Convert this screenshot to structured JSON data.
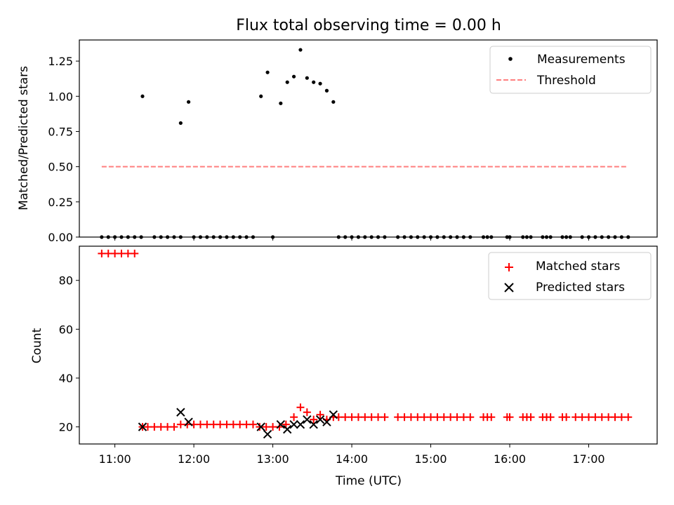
{
  "chart_data": [
    {
      "type": "scatter",
      "title": "Flux total observing time = 0.00 h",
      "xlabel": "",
      "ylabel": "Matched/Predicted stars",
      "xlim": [
        "10:33",
        "17:52"
      ],
      "ylim": [
        0,
        1.4
      ],
      "yticks": [
        "0.00",
        "0.25",
        "0.50",
        "0.75",
        "1.00",
        "1.25"
      ],
      "legend_position": "upper-right",
      "series": [
        {
          "name": "Measurements",
          "marker": "dot",
          "color": "#000000",
          "points": [
            [
              "10:50",
              0
            ],
            [
              "10:55",
              0
            ],
            [
              "11:00",
              0
            ],
            [
              "11:05",
              0
            ],
            [
              "11:10",
              0
            ],
            [
              "11:15",
              0
            ],
            [
              "11:20",
              0
            ],
            [
              "11:21",
              1.0
            ],
            [
              "11:30",
              0
            ],
            [
              "11:35",
              0
            ],
            [
              "11:40",
              0
            ],
            [
              "11:45",
              0
            ],
            [
              "11:50",
              0
            ],
            [
              "11:50",
              0.81
            ],
            [
              "11:56",
              0.96
            ],
            [
              "12:00",
              0
            ],
            [
              "12:05",
              0
            ],
            [
              "12:10",
              0
            ],
            [
              "12:15",
              0
            ],
            [
              "12:20",
              0
            ],
            [
              "12:25",
              0
            ],
            [
              "12:30",
              0
            ],
            [
              "12:35",
              0
            ],
            [
              "12:40",
              0
            ],
            [
              "12:45",
              0
            ],
            [
              "12:51",
              1.0
            ],
            [
              "12:56",
              1.17
            ],
            [
              "13:00",
              0
            ],
            [
              "13:06",
              0.95
            ],
            [
              "13:11",
              1.1
            ],
            [
              "13:16",
              1.14
            ],
            [
              "13:21",
              1.33
            ],
            [
              "13:26",
              1.13
            ],
            [
              "13:31",
              1.1
            ],
            [
              "13:36",
              1.09
            ],
            [
              "13:41",
              1.04
            ],
            [
              "13:46",
              0.96
            ],
            [
              "13:50",
              0
            ],
            [
              "13:55",
              0
            ],
            [
              "14:00",
              0
            ],
            [
              "14:05",
              0
            ],
            [
              "14:10",
              0
            ],
            [
              "14:15",
              0
            ],
            [
              "14:20",
              0
            ],
            [
              "14:25",
              0
            ],
            [
              "14:35",
              0
            ],
            [
              "14:40",
              0
            ],
            [
              "14:45",
              0
            ],
            [
              "14:50",
              0
            ],
            [
              "14:55",
              0
            ],
            [
              "15:00",
              0
            ],
            [
              "15:05",
              0
            ],
            [
              "15:10",
              0
            ],
            [
              "15:15",
              0
            ],
            [
              "15:20",
              0
            ],
            [
              "15:25",
              0
            ],
            [
              "15:30",
              0
            ],
            [
              "15:40",
              0
            ],
            [
              "15:43",
              0
            ],
            [
              "15:46",
              0
            ],
            [
              "15:58",
              0
            ],
            [
              "16:00",
              0
            ],
            [
              "16:10",
              0
            ],
            [
              "16:13",
              0
            ],
            [
              "16:16",
              0
            ],
            [
              "16:25",
              0
            ],
            [
              "16:28",
              0
            ],
            [
              "16:31",
              0
            ],
            [
              "16:40",
              0
            ],
            [
              "16:43",
              0
            ],
            [
              "16:46",
              0
            ],
            [
              "16:55",
              0
            ],
            [
              "17:00",
              0
            ],
            [
              "17:05",
              0
            ],
            [
              "17:10",
              0
            ],
            [
              "17:15",
              0
            ],
            [
              "17:20",
              0
            ],
            [
              "17:25",
              0
            ],
            [
              "17:30",
              0
            ]
          ]
        },
        {
          "name": "Threshold",
          "marker": "dashed-line",
          "color": "#ff7f7f",
          "points": [
            [
              "10:50",
              0.5
            ],
            [
              "17:30",
              0.5
            ]
          ]
        }
      ]
    },
    {
      "type": "scatter",
      "title": "",
      "xlabel": "Time (UTC)",
      "ylabel": "Count",
      "xlim": [
        "10:33",
        "17:52"
      ],
      "ylim": [
        13,
        94
      ],
      "yticks": [
        "20",
        "40",
        "60",
        "80"
      ],
      "xticks": [
        "11:00",
        "12:00",
        "13:00",
        "14:00",
        "15:00",
        "16:00",
        "17:00"
      ],
      "legend_position": "upper-right",
      "series": [
        {
          "name": "Matched stars",
          "marker": "plus",
          "color": "#ff0000",
          "points": [
            [
              "10:50",
              91
            ],
            [
              "10:55",
              91
            ],
            [
              "11:00",
              91
            ],
            [
              "11:05",
              91
            ],
            [
              "11:10",
              91
            ],
            [
              "11:15",
              91
            ],
            [
              "11:21",
              20
            ],
            [
              "11:25",
              20
            ],
            [
              "11:30",
              20
            ],
            [
              "11:35",
              20
            ],
            [
              "11:40",
              20
            ],
            [
              "11:45",
              20
            ],
            [
              "11:50",
              21
            ],
            [
              "11:55",
              21
            ],
            [
              "12:00",
              21
            ],
            [
              "12:05",
              21
            ],
            [
              "12:10",
              21
            ],
            [
              "12:15",
              21
            ],
            [
              "12:20",
              21
            ],
            [
              "12:25",
              21
            ],
            [
              "12:30",
              21
            ],
            [
              "12:35",
              21
            ],
            [
              "12:40",
              21
            ],
            [
              "12:45",
              21
            ],
            [
              "12:50",
              20
            ],
            [
              "12:55",
              20
            ],
            [
              "13:00",
              20
            ],
            [
              "13:05",
              20
            ],
            [
              "13:10",
              21
            ],
            [
              "13:16",
              24
            ],
            [
              "13:21",
              28
            ],
            [
              "13:26",
              26
            ],
            [
              "13:31",
              23
            ],
            [
              "13:36",
              25
            ],
            [
              "13:41",
              23
            ],
            [
              "13:46",
              24
            ],
            [
              "13:50",
              24
            ],
            [
              "13:55",
              24
            ],
            [
              "14:00",
              24
            ],
            [
              "14:05",
              24
            ],
            [
              "14:10",
              24
            ],
            [
              "14:15",
              24
            ],
            [
              "14:20",
              24
            ],
            [
              "14:25",
              24
            ],
            [
              "14:35",
              24
            ],
            [
              "14:40",
              24
            ],
            [
              "14:45",
              24
            ],
            [
              "14:50",
              24
            ],
            [
              "14:55",
              24
            ],
            [
              "15:00",
              24
            ],
            [
              "15:05",
              24
            ],
            [
              "15:10",
              24
            ],
            [
              "15:15",
              24
            ],
            [
              "15:20",
              24
            ],
            [
              "15:25",
              24
            ],
            [
              "15:30",
              24
            ],
            [
              "15:40",
              24
            ],
            [
              "15:43",
              24
            ],
            [
              "15:46",
              24
            ],
            [
              "15:58",
              24
            ],
            [
              "16:00",
              24
            ],
            [
              "16:10",
              24
            ],
            [
              "16:13",
              24
            ],
            [
              "16:16",
              24
            ],
            [
              "16:25",
              24
            ],
            [
              "16:28",
              24
            ],
            [
              "16:31",
              24
            ],
            [
              "16:40",
              24
            ],
            [
              "16:43",
              24
            ],
            [
              "16:50",
              24
            ],
            [
              "16:55",
              24
            ],
            [
              "17:00",
              24
            ],
            [
              "17:05",
              24
            ],
            [
              "17:10",
              24
            ],
            [
              "17:15",
              24
            ],
            [
              "17:20",
              24
            ],
            [
              "17:25",
              24
            ],
            [
              "17:30",
              24
            ]
          ]
        },
        {
          "name": "Predicted stars",
          "marker": "x",
          "color": "#000000",
          "points": [
            [
              "11:21",
              20
            ],
            [
              "11:50",
              26
            ],
            [
              "11:56",
              22
            ],
            [
              "12:51",
              20
            ],
            [
              "12:56",
              17
            ],
            [
              "13:06",
              21
            ],
            [
              "13:11",
              19
            ],
            [
              "13:16",
              21
            ],
            [
              "13:21",
              21
            ],
            [
              "13:26",
              23
            ],
            [
              "13:31",
              21
            ],
            [
              "13:36",
              23
            ],
            [
              "13:41",
              22
            ],
            [
              "13:46",
              25
            ]
          ]
        }
      ]
    }
  ]
}
